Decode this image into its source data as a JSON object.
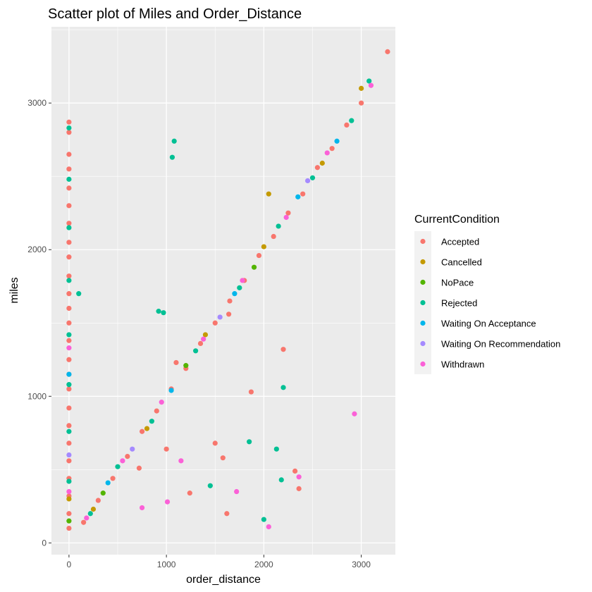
{
  "chart_data": {
    "type": "scatter",
    "title": "Scatter plot of Miles and Order_Distance",
    "xlabel": "order_distance",
    "ylabel": "miles",
    "xlim": [
      -180,
      3350
    ],
    "ylim": [
      -80,
      3520
    ],
    "x_ticks": [
      0,
      1000,
      2000,
      3000
    ],
    "x_tick_labels": [
      "0",
      "1000",
      "2000",
      "3000"
    ],
    "y_ticks": [
      0,
      1000,
      2000,
      3000
    ],
    "y_tick_labels": [
      "0",
      "1000",
      "2000",
      "3000"
    ],
    "grid": true,
    "panel_background": "#ebebeb",
    "legend_title": "CurrentCondition",
    "legend_position": "right",
    "series": [
      {
        "name": "Accepted",
        "color": "#F8766D",
        "points": [
          [
            0,
            2870
          ],
          [
            0,
            2800
          ],
          [
            0,
            2650
          ],
          [
            0,
            2550
          ],
          [
            0,
            2420
          ],
          [
            0,
            2300
          ],
          [
            0,
            2180
          ],
          [
            0,
            2050
          ],
          [
            0,
            1950
          ],
          [
            0,
            1820
          ],
          [
            0,
            1700
          ],
          [
            0,
            1600
          ],
          [
            0,
            1500
          ],
          [
            0,
            1380
          ],
          [
            0,
            1250
          ],
          [
            0,
            1150
          ],
          [
            0,
            1050
          ],
          [
            0,
            920
          ],
          [
            0,
            800
          ],
          [
            0,
            680
          ],
          [
            0,
            560
          ],
          [
            0,
            440
          ],
          [
            0,
            320
          ],
          [
            0,
            200
          ],
          [
            0,
            100
          ],
          [
            150,
            140
          ],
          [
            300,
            290
          ],
          [
            450,
            440
          ],
          [
            600,
            590
          ],
          [
            750,
            760
          ],
          [
            900,
            900
          ],
          [
            1050,
            1050
          ],
          [
            1200,
            1190
          ],
          [
            1350,
            1360
          ],
          [
            1500,
            1500
          ],
          [
            1650,
            1650
          ],
          [
            1800,
            1790
          ],
          [
            1950,
            1960
          ],
          [
            2100,
            2090
          ],
          [
            2250,
            2250
          ],
          [
            2400,
            2380
          ],
          [
            2550,
            2560
          ],
          [
            2700,
            2690
          ],
          [
            2850,
            2850
          ],
          [
            3000,
            3000
          ],
          [
            3270,
            3350
          ],
          [
            1100,
            1230
          ],
          [
            1500,
            680
          ],
          [
            1620,
            200
          ],
          [
            1870,
            1030
          ],
          [
            2200,
            1320
          ],
          [
            2320,
            490
          ],
          [
            2360,
            370
          ],
          [
            1640,
            1560
          ],
          [
            1580,
            580
          ],
          [
            1240,
            340
          ],
          [
            1000,
            640
          ],
          [
            720,
            510
          ]
        ]
      },
      {
        "name": "Cancelled",
        "color": "#C49A00",
        "points": [
          [
            0,
            300
          ],
          [
            250,
            230
          ],
          [
            800,
            780
          ],
          [
            1400,
            1420
          ],
          [
            2000,
            2020
          ],
          [
            2600,
            2590
          ],
          [
            3000,
            3100
          ],
          [
            2050,
            2380
          ]
        ]
      },
      {
        "name": "NoPace",
        "color": "#53B400",
        "points": [
          [
            0,
            150
          ],
          [
            350,
            340
          ],
          [
            1200,
            1210
          ],
          [
            1900,
            1880
          ]
        ]
      },
      {
        "name": "Rejected",
        "color": "#00C094",
        "points": [
          [
            0,
            2830
          ],
          [
            0,
            2480
          ],
          [
            0,
            2150
          ],
          [
            0,
            1790
          ],
          [
            0,
            1420
          ],
          [
            0,
            1080
          ],
          [
            0,
            760
          ],
          [
            0,
            420
          ],
          [
            100,
            1700
          ],
          [
            1060,
            2630
          ],
          [
            1080,
            2740
          ],
          [
            920,
            1580
          ],
          [
            970,
            1570
          ],
          [
            1850,
            690
          ],
          [
            2000,
            160
          ],
          [
            2130,
            640
          ],
          [
            2200,
            1060
          ],
          [
            2180,
            430
          ],
          [
            1450,
            390
          ],
          [
            220,
            200
          ],
          [
            500,
            520
          ],
          [
            850,
            830
          ],
          [
            1300,
            1310
          ],
          [
            1750,
            1740
          ],
          [
            2150,
            2160
          ],
          [
            2500,
            2490
          ],
          [
            2900,
            2880
          ],
          [
            3080,
            3150
          ]
        ]
      },
      {
        "name": "Waiting On Acceptance",
        "color": "#00B6EB",
        "points": [
          [
            0,
            1150
          ],
          [
            400,
            410
          ],
          [
            1050,
            1040
          ],
          [
            1700,
            1700
          ],
          [
            2350,
            2360
          ],
          [
            2750,
            2740
          ]
        ]
      },
      {
        "name": "Waiting On Recommendation",
        "color": "#A58AFF",
        "points": [
          [
            0,
            600
          ],
          [
            650,
            640
          ],
          [
            1550,
            1540
          ],
          [
            2450,
            2470
          ]
        ]
      },
      {
        "name": "Withdrawn",
        "color": "#FB61D7",
        "points": [
          [
            0,
            1330
          ],
          [
            0,
            350
          ],
          [
            180,
            170
          ],
          [
            550,
            560
          ],
          [
            950,
            960
          ],
          [
            1380,
            1390
          ],
          [
            1780,
            1790
          ],
          [
            2230,
            2220
          ],
          [
            2650,
            2660
          ],
          [
            3100,
            3120
          ],
          [
            2930,
            880
          ],
          [
            2360,
            450
          ],
          [
            2050,
            110
          ],
          [
            1720,
            350
          ],
          [
            1150,
            560
          ],
          [
            1010,
            280
          ],
          [
            750,
            240
          ]
        ]
      }
    ]
  }
}
